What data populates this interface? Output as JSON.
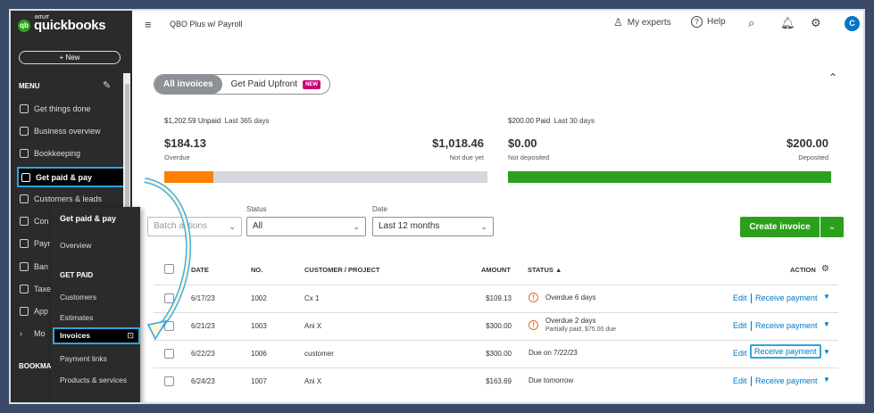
{
  "app": {
    "logo_text": "quickbooks",
    "logo_brand": "INTUIT",
    "company": "QBO Plus w/ Payroll"
  },
  "sidebar": {
    "new_label": "+ New",
    "menu_label": "MENU",
    "bookmarks_label": "BOOKMA",
    "items": [
      {
        "label": "Get things done"
      },
      {
        "label": "Business overview"
      },
      {
        "label": "Bookkeeping"
      },
      {
        "label": "Get paid & pay"
      },
      {
        "label": "Customers & leads"
      },
      {
        "label": "Con"
      },
      {
        "label": "Payr"
      },
      {
        "label": "Ban"
      },
      {
        "label": "Taxe"
      },
      {
        "label": "App"
      },
      {
        "label": "Mo"
      }
    ]
  },
  "flyout": {
    "title": "Get paid & pay",
    "overview": "Overview",
    "section": "GET PAID",
    "items": [
      "Customers",
      "Estimates",
      "Invoices",
      "Payment links",
      "Products & services"
    ]
  },
  "topbar": {
    "experts": "My experts",
    "help": "Help",
    "avatar": "C"
  },
  "tabs": {
    "all": "All invoices",
    "upfront": "Get Paid Upfront",
    "new_badge": "NEW"
  },
  "money": {
    "unpaid_amount": "$1,202.59 Unpaid",
    "unpaid_period": "Last 365 days",
    "overdue_value": "$184.13",
    "overdue_label": "Overdue",
    "notdue_value": "$1,018.46",
    "notdue_label": "Not due yet",
    "paid_amount": "$200.00 Paid",
    "paid_period": "Last 30 days",
    "notdeposited_value": "$0.00",
    "notdeposited_label": "Not deposited",
    "deposited_value": "$200.00",
    "deposited_label": "Deposited",
    "overdue_fraction": 0.153,
    "deposited_fraction": 1.0
  },
  "filters": {
    "batch": "Batch actions",
    "status_label": "Status",
    "status_value": "All",
    "date_label": "Date",
    "date_value": "Last 12 months",
    "create": "Create invoice"
  },
  "table": {
    "headers": {
      "date": "DATE",
      "no": "NO.",
      "customer": "CUSTOMER / PROJECT",
      "amount": "AMOUNT",
      "status": "STATUS ▲",
      "action": "ACTION"
    },
    "rows": [
      {
        "date": "6/17/23",
        "no": "1002",
        "customer": "Cx 1",
        "amount": "$109.13",
        "status": "Overdue 6 days",
        "sub": "",
        "edit": "Edit",
        "receive": "Receive payment"
      },
      {
        "date": "6/21/23",
        "no": "1003",
        "customer": "Ani X",
        "amount": "$300.00",
        "status": "Overdue 2 days",
        "sub": "Partially paid, $75.00 due",
        "edit": "Edit",
        "receive": "Receive payment"
      },
      {
        "date": "6/22/23",
        "no": "1006",
        "customer": "customer",
        "amount": "$300.00",
        "status": "Due on 7/22/23",
        "sub": "",
        "edit": "Edit",
        "receive": "Receive payment"
      },
      {
        "date": "6/24/23",
        "no": "1007",
        "customer": "Ani X",
        "amount": "$163.69",
        "status": "Due tomorrow",
        "sub": "",
        "edit": "Edit",
        "receive": "Receive payment"
      }
    ]
  },
  "colors": {
    "brand": "#2ca01c",
    "accent": "#0077c5",
    "highlight": "#2da5df",
    "overdue": "#ff8000",
    "sidebar": "#2b2b2b"
  }
}
